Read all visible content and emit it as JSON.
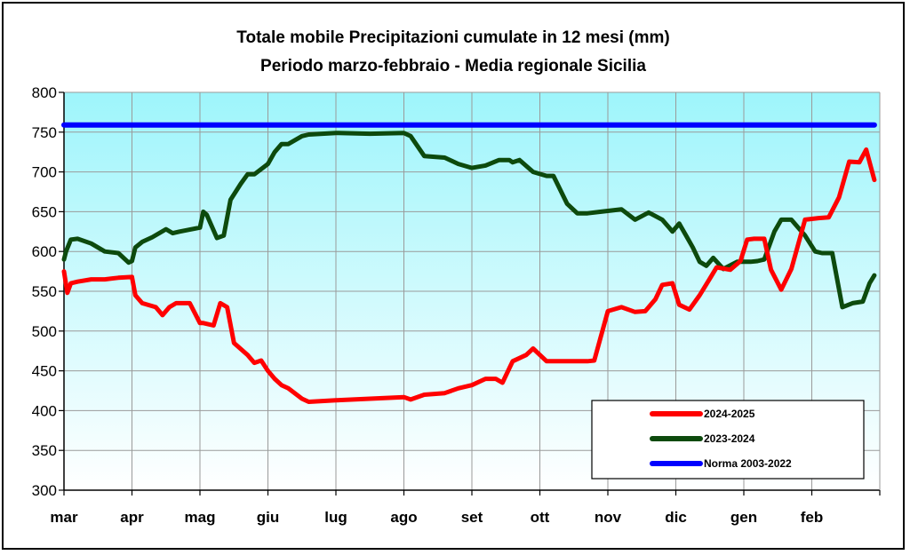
{
  "chart_data": {
    "type": "line",
    "title": "Totale mobile Precipitazioni cumulate in 12 mesi (mm)",
    "subtitle": "Periodo marzo-febbraio  - Media regionale Sicilia",
    "xlabel": "",
    "ylabel": "",
    "ylim": [
      300,
      800
    ],
    "yticks": [
      300,
      350,
      400,
      450,
      500,
      550,
      600,
      650,
      700,
      750,
      800
    ],
    "categories": [
      "mar",
      "apr",
      "mag",
      "giu",
      "lug",
      "ago",
      "set",
      "ott",
      "nov",
      "dic",
      "gen",
      "feb"
    ],
    "grid": true,
    "legend_position": "bottom-right",
    "background_gradient": [
      "#9ef5fb",
      "#ffffff"
    ],
    "series": [
      {
        "name": "2024-2025",
        "color": "#ff0000",
        "x": [
          0,
          0.05,
          0.1,
          0.2,
          0.4,
          0.6,
          0.8,
          1.0,
          1.05,
          1.15,
          1.35,
          1.45,
          1.55,
          1.65,
          1.85,
          2.0,
          2.05,
          2.2,
          2.3,
          2.4,
          2.5,
          2.7,
          2.8,
          2.9,
          3.0,
          3.1,
          3.2,
          3.3,
          3.5,
          3.6,
          3.8,
          4.0,
          4.5,
          5.0,
          5.1,
          5.3,
          5.6,
          5.8,
          6.0,
          6.2,
          6.35,
          6.45,
          6.6,
          6.8,
          6.9,
          7.0,
          7.1,
          7.5,
          7.7,
          7.8,
          8.0,
          8.2,
          8.4,
          8.55,
          8.7,
          8.8,
          8.95,
          9.05,
          9.2,
          9.35,
          9.5,
          9.6,
          9.8,
          9.95,
          10.05,
          10.15,
          10.3,
          10.4,
          10.55,
          10.7,
          10.9,
          11.1,
          11.25,
          11.4,
          11.55,
          11.7,
          11.8,
          11.92
        ],
        "values": [
          575,
          548,
          560,
          562,
          565,
          565,
          567,
          568,
          545,
          535,
          530,
          520,
          530,
          535,
          535,
          510,
          510,
          507,
          535,
          530,
          485,
          470,
          460,
          463,
          450,
          440,
          432,
          428,
          415,
          411,
          412,
          413,
          415,
          417,
          414,
          420,
          422,
          428,
          432,
          440,
          440,
          435,
          462,
          470,
          478,
          470,
          462,
          462,
          462,
          463,
          525,
          530,
          524,
          525,
          540,
          558,
          560,
          533,
          527,
          545,
          566,
          580,
          577,
          588,
          615,
          616,
          616,
          577,
          552,
          578,
          640,
          642,
          643,
          668,
          713,
          712,
          728,
          690
        ]
      },
      {
        "name": "2023-2024",
        "color": "#0d4a0d",
        "x": [
          0,
          0.03,
          0.1,
          0.2,
          0.4,
          0.6,
          0.8,
          0.95,
          1.0,
          1.05,
          1.15,
          1.3,
          1.5,
          1.6,
          1.7,
          2.0,
          2.05,
          2.1,
          2.25,
          2.35,
          2.45,
          2.6,
          2.7,
          2.8,
          3.0,
          3.1,
          3.2,
          3.3,
          3.5,
          3.6,
          3.8,
          4.0,
          4.5,
          5.0,
          5.1,
          5.3,
          5.6,
          5.8,
          6.0,
          6.2,
          6.4,
          6.55,
          6.6,
          6.7,
          6.9,
          7.1,
          7.2,
          7.4,
          7.55,
          7.7,
          7.9,
          8.1,
          8.2,
          8.4,
          8.6,
          8.8,
          8.9,
          8.95,
          9.05,
          9.15,
          9.25,
          9.35,
          9.45,
          9.55,
          9.7,
          9.9,
          10.1,
          10.2,
          10.3,
          10.45,
          10.55,
          10.7,
          10.9,
          11.05,
          11.15,
          11.2,
          11.3,
          11.45,
          11.6,
          11.75,
          11.85,
          11.92
        ],
        "values": [
          590,
          600,
          615,
          616,
          610,
          600,
          598,
          586,
          588,
          605,
          612,
          618,
          628,
          623,
          625,
          630,
          650,
          646,
          617,
          620,
          665,
          685,
          697,
          697,
          710,
          725,
          735,
          735,
          745,
          747,
          748,
          749,
          748,
          749,
          745,
          720,
          718,
          710,
          705,
          708,
          715,
          715,
          712,
          715,
          700,
          695,
          695,
          660,
          648,
          648,
          650,
          652,
          653,
          640,
          649,
          640,
          630,
          625,
          635,
          620,
          605,
          587,
          582,
          592,
          578,
          587,
          587,
          588,
          590,
          625,
          640,
          640,
          620,
          600,
          598,
          598,
          598,
          530,
          535,
          537,
          560,
          570
        ]
      },
      {
        "name": "Norma 2003-2022",
        "color": "#0000ff",
        "x": [
          0,
          11.92
        ],
        "values": [
          759,
          759
        ]
      }
    ]
  }
}
